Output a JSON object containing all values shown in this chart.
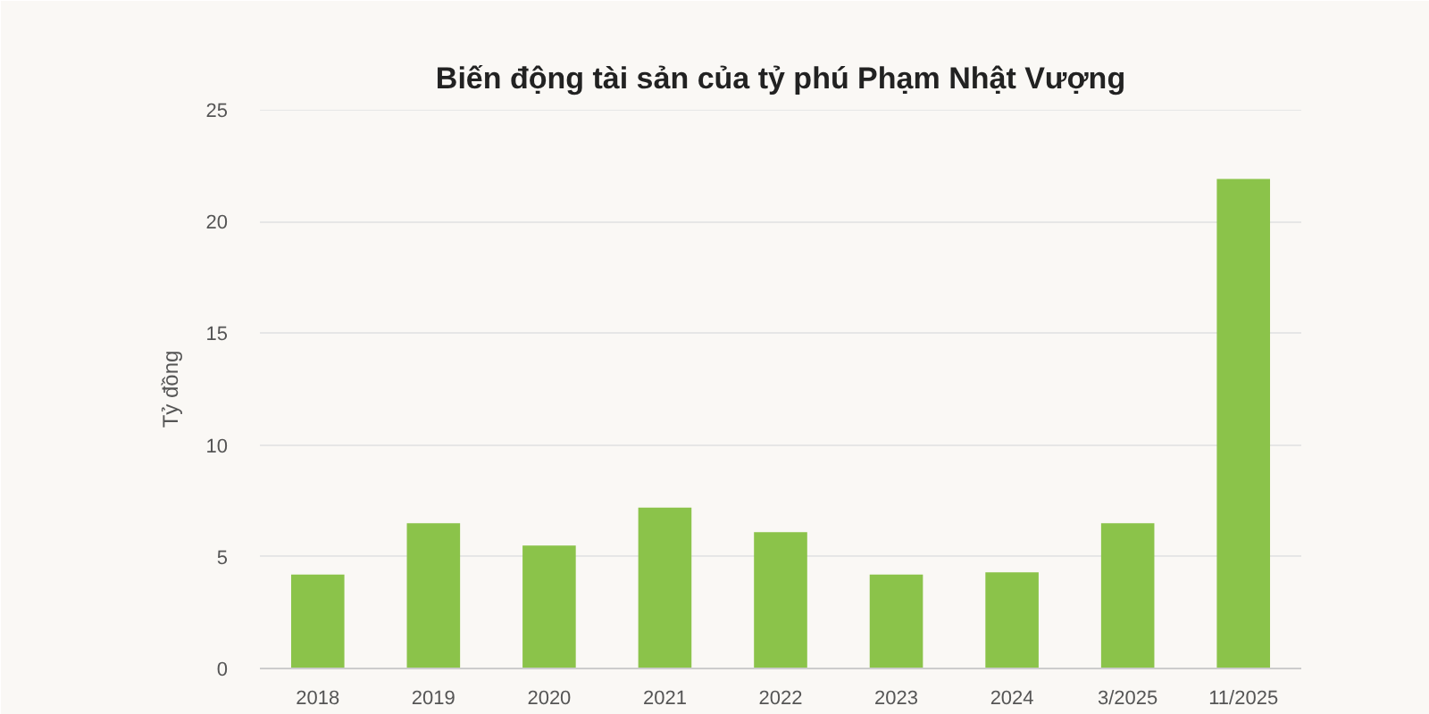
{
  "chart_data": {
    "type": "bar",
    "title": "Biến động tài sản của tỷ phú Phạm Nhật Vượng",
    "ylabel": "Tỷ đồng",
    "categories": [
      "2018",
      "2019",
      "2020",
      "2021",
      "2022",
      "2023",
      "2024",
      "3/2025",
      "11/2025"
    ],
    "values": [
      4.2,
      6.5,
      5.5,
      7.2,
      6.1,
      4.2,
      4.3,
      6.5,
      21.9
    ],
    "color": "#8bc34a",
    "ylim": [
      0,
      25
    ],
    "yticks": [
      0,
      5,
      10,
      15,
      20,
      25
    ],
    "grid": "y"
  }
}
